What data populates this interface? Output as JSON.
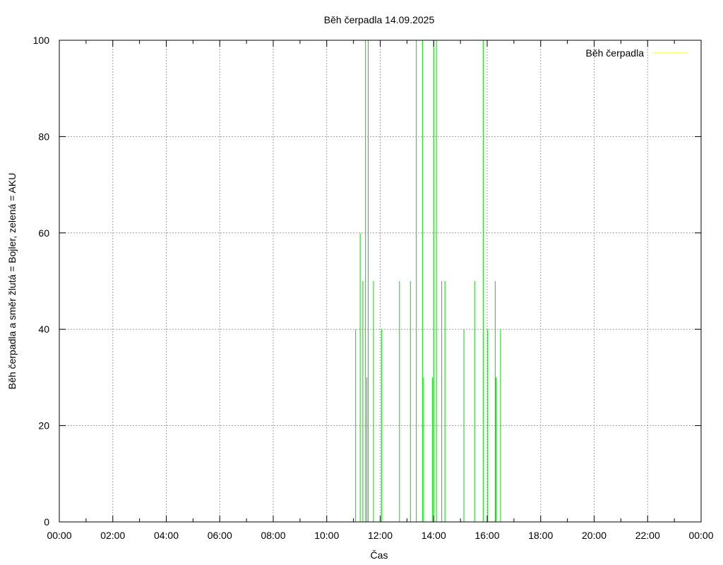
{
  "chart_data": {
    "type": "line",
    "title": "Běh čerpadla 14.09.2025",
    "xlabel": "Čas",
    "ylabel": "Běh čerpadla a směr žlutá = Bojler, zelená = AKU",
    "xlim": [
      0,
      24
    ],
    "ylim": [
      0,
      100
    ],
    "x_ticks": [
      "00:00",
      "02:00",
      "04:00",
      "06:00",
      "08:00",
      "10:00",
      "12:00",
      "14:00",
      "16:00",
      "18:00",
      "20:00",
      "22:00",
      "00:00"
    ],
    "y_ticks": [
      "0",
      "20",
      "40",
      "60",
      "80",
      "100"
    ],
    "grid": true,
    "legend_position": "top-right",
    "colors": {
      "boiler": "#ffff00",
      "aku": "#00dd00"
    },
    "series": [
      {
        "name": "Běh čerpadla",
        "color": "#ffff00",
        "spikes": []
      },
      {
        "color": "#00dd00",
        "spikes": [
          {
            "x": 11.08,
            "y": 40
          },
          {
            "x": 11.25,
            "y": 60
          },
          {
            "x": 11.35,
            "y": 50
          },
          {
            "x": 11.45,
            "y": 100
          },
          {
            "x": 11.5,
            "y": 30
          },
          {
            "x": 11.55,
            "y": 100
          },
          {
            "x": 11.75,
            "y": 50
          },
          {
            "x": 12.05,
            "y": 40
          },
          {
            "x": 12.72,
            "y": 50
          },
          {
            "x": 13.13,
            "y": 50
          },
          {
            "x": 13.35,
            "y": 100
          },
          {
            "x": 13.58,
            "y": 100
          },
          {
            "x": 13.62,
            "y": 30
          },
          {
            "x": 13.95,
            "y": 30
          },
          {
            "x": 14.0,
            "y": 100
          },
          {
            "x": 14.1,
            "y": 100
          },
          {
            "x": 14.3,
            "y": 50
          },
          {
            "x": 14.42,
            "y": 50
          },
          {
            "x": 15.13,
            "y": 40
          },
          {
            "x": 15.53,
            "y": 50
          },
          {
            "x": 15.85,
            "y": 100
          },
          {
            "x": 16.02,
            "y": 40
          },
          {
            "x": 16.3,
            "y": 50
          },
          {
            "x": 16.33,
            "y": 30
          },
          {
            "x": 16.5,
            "y": 40
          }
        ]
      }
    ]
  }
}
